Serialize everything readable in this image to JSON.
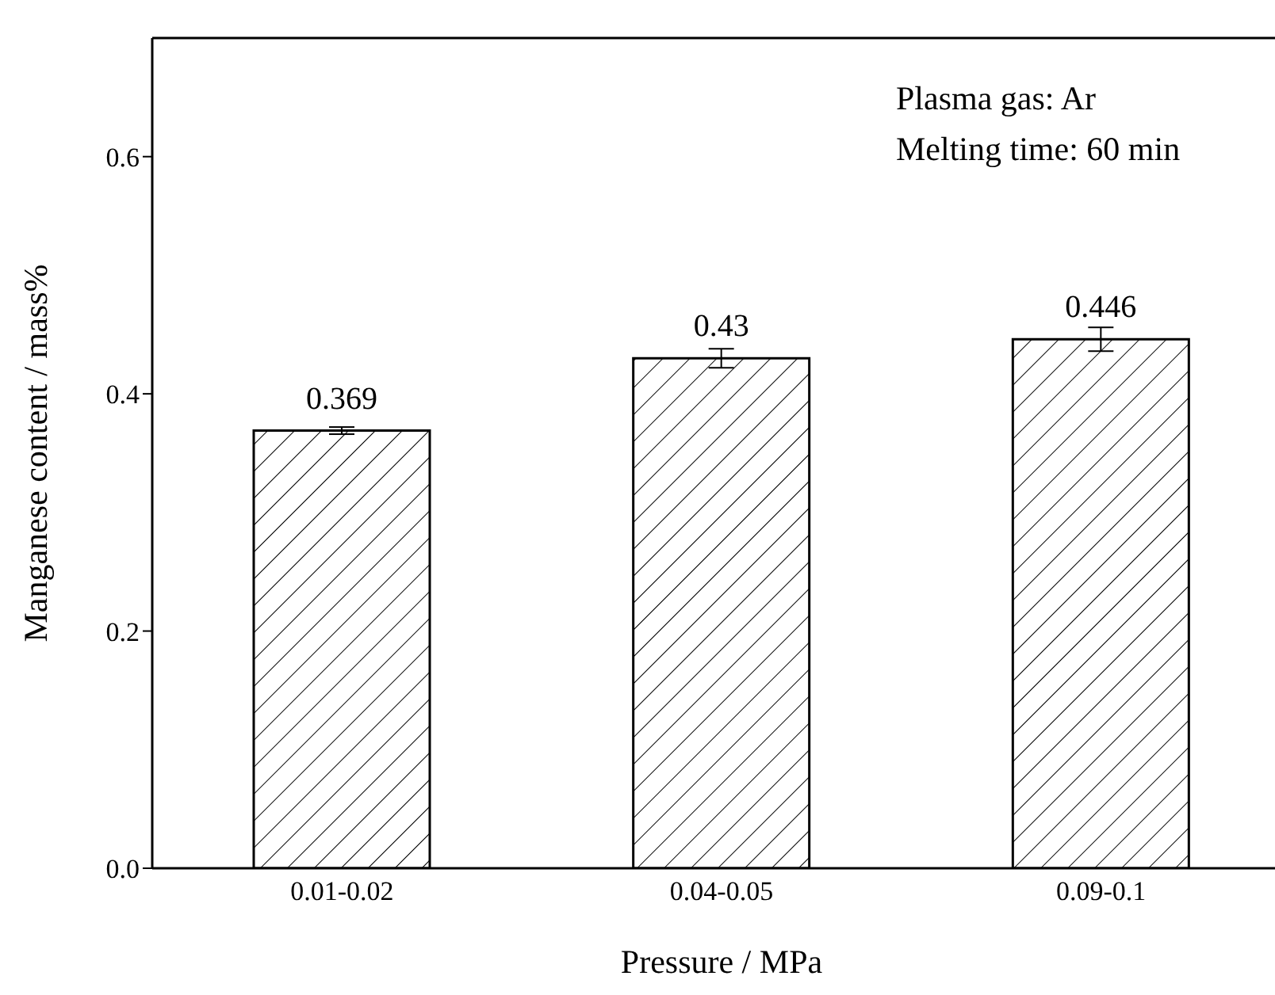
{
  "chart_data": {
    "type": "bar",
    "xlabel": "Pressure / MPa",
    "ylabel": "Manganese content / mass%",
    "categories": [
      "0.01-0.02",
      "0.04-0.05",
      "0.09-0.1"
    ],
    "values": [
      0.369,
      0.43,
      0.446
    ],
    "errors": [
      0.003,
      0.008,
      0.01
    ],
    "color": "#000000",
    "data_labels": true,
    "ylim": [
      0,
      0.7
    ],
    "yticks": [
      {
        "value": 0,
        "label": "0.0"
      },
      0.2,
      0.4,
      0.6
    ],
    "grid": false,
    "annotations": [
      "Plasma gas: Ar",
      "Melting time: 60 min"
    ]
  }
}
